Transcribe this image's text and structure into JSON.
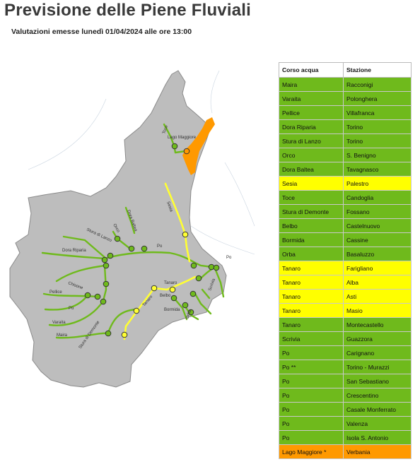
{
  "header": {
    "title": "Previsione delle Piene Fluviali",
    "subtitle": "Valutazioni emesse lunedì 01/04/2024 alle ore 13:00"
  },
  "colors": {
    "green": "#6fba1c",
    "yellow": "#ffff00",
    "orange": "#ff9900",
    "land": "#bdbdbd",
    "river_outside": "#ffffff"
  },
  "table": {
    "headers": [
      "Corso acqua",
      "Stazione"
    ],
    "rows": [
      {
        "river": "Maira",
        "station": "Racconigi",
        "status": "green"
      },
      {
        "river": "Varaita",
        "station": "Polonghera",
        "status": "green"
      },
      {
        "river": "Pellice",
        "station": "Villafranca",
        "status": "green"
      },
      {
        "river": "Dora Riparia",
        "station": "Torino",
        "status": "green"
      },
      {
        "river": "Stura di Lanzo",
        "station": "Torino",
        "status": "green"
      },
      {
        "river": "Orco",
        "station": "S. Benigno",
        "status": "green"
      },
      {
        "river": "Dora Baltea",
        "station": "Tavagnasco",
        "status": "green"
      },
      {
        "river": "Sesia",
        "station": "Palestro",
        "status": "yellow"
      },
      {
        "river": "Toce",
        "station": "Candoglia",
        "status": "green"
      },
      {
        "river": "Stura di Demonte",
        "station": "Fossano",
        "status": "green"
      },
      {
        "river": "Belbo",
        "station": "Castelnuovo",
        "status": "green"
      },
      {
        "river": "Bormida",
        "station": "Cassine",
        "status": "green"
      },
      {
        "river": "Orba",
        "station": "Basaluzzo",
        "status": "green"
      },
      {
        "river": "Tanaro",
        "station": "Farigliano",
        "status": "yellow"
      },
      {
        "river": "Tanaro",
        "station": "Alba",
        "status": "yellow"
      },
      {
        "river": "Tanaro",
        "station": "Asti",
        "status": "yellow"
      },
      {
        "river": "Tanaro",
        "station": "Masio",
        "status": "yellow"
      },
      {
        "river": "Tanaro",
        "station": "Montecastello",
        "status": "green"
      },
      {
        "river": "Scrivia",
        "station": "Guazzora",
        "status": "green"
      },
      {
        "river": "Po",
        "station": "Carignano",
        "status": "green"
      },
      {
        "river": "Po **",
        "station": "Torino - Murazzi",
        "status": "green"
      },
      {
        "river": "Po",
        "station": "San Sebastiano",
        "status": "green"
      },
      {
        "river": "Po",
        "station": "Crescentino",
        "status": "green"
      },
      {
        "river": "Po",
        "station": "Casale Monferrato",
        "status": "green"
      },
      {
        "river": "Po",
        "station": "Valenza",
        "status": "green"
      },
      {
        "river": "Po",
        "station": "Isola S. Antonio",
        "status": "green"
      },
      {
        "river": "Lago Maggiore *",
        "station": "Verbania",
        "status": "orange"
      }
    ]
  },
  "map_labels": {
    "lago_maggiore": "Lago Maggiore",
    "toce": "Toce",
    "sesia": "Sesia",
    "dora_baltea": "Dora Baltea",
    "orco": "Orco",
    "stura_lanzo": "Stura di Lanzo",
    "dora_riparia": "Dora Riparia",
    "po_north": "Po",
    "po_east": "Po",
    "po_south": "Po",
    "pellice": "Pellice",
    "chisone": "Chisone",
    "varaita": "Varaita",
    "maira": "Maira",
    "stura_demonte": "Stura di Demonte",
    "tanaro": "Tanaro",
    "tanaro_south": "Tanaro",
    "belbo": "Belbo",
    "bormida": "Bormida",
    "orba": "Orba",
    "scrivia": "Scrivia"
  }
}
